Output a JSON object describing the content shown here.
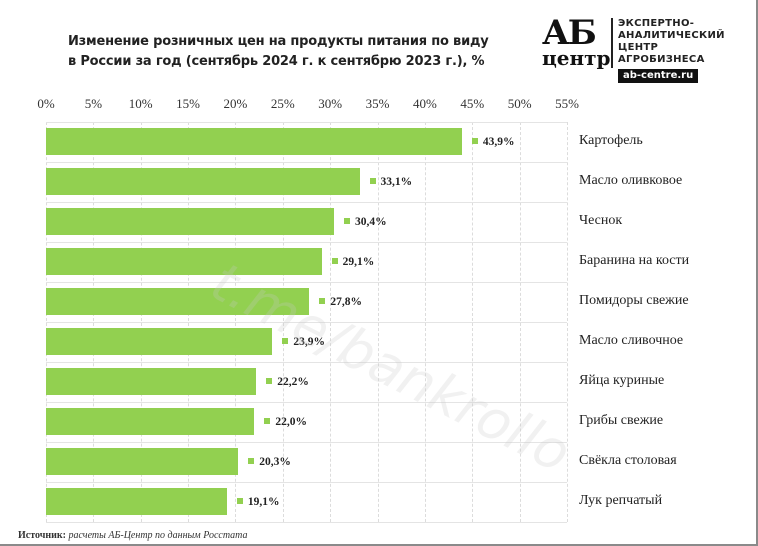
{
  "header": {
    "title_line1": "Изменение розничных цен на продукты питания по виду",
    "title_line2": "в России за год (сентябрь 2024 г. к сентябрю 2023 г.), %"
  },
  "logo": {
    "mark_top": "АБ",
    "mark_bottom": "центр",
    "text_lines": [
      "ЭКСПЕРТНО-",
      "АНАЛИТИЧЕСКИЙ",
      "ЦЕНТР",
      "АГРОБИЗНЕСА"
    ],
    "url": "ab-centre.ru"
  },
  "watermark": "t.me/bankrollo",
  "source": {
    "label": "Источник:",
    "text": " расчеты АБ-Центр по данным Росстата"
  },
  "colors": {
    "bar": "#92d050",
    "grid": "#dcdcdc"
  },
  "chart_data": {
    "type": "bar",
    "orientation": "horizontal",
    "title": "Изменение розничных цен на продукты питания по виду в России за год (сентябрь 2024 г. к сентябрю 2023 г.), %",
    "xlabel": "",
    "ylabel": "",
    "xlim": [
      0,
      55
    ],
    "x_ticks": [
      "0%",
      "5%",
      "10%",
      "15%",
      "20%",
      "25%",
      "30%",
      "35%",
      "40%",
      "45%",
      "50%",
      "55%"
    ],
    "x_axis_position": "top",
    "grid": true,
    "categories": [
      "Картофель",
      "Масло оливковое",
      "Чеснок",
      "Баранина на кости",
      "Помидоры свежие",
      "Масло сливочное",
      "Яйца куриные",
      "Грибы свежие",
      "Свёкла столовая",
      "Лук репчатый"
    ],
    "values": [
      43.9,
      33.1,
      30.4,
      29.1,
      27.8,
      23.9,
      22.2,
      22.0,
      20.3,
      19.1
    ],
    "labels": [
      "43,9%",
      "33,1%",
      "30,4%",
      "29,1%",
      "27,8%",
      "23,9%",
      "22,2%",
      "22,0%",
      "20,3%",
      "19,1%"
    ],
    "category_labels_position": "right"
  }
}
